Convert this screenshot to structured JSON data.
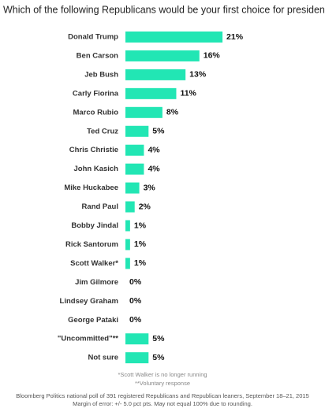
{
  "chart_data": {
    "type": "bar",
    "orientation": "horizontal",
    "title": "Which of the following Republicans would be your first choice for president?",
    "categories": [
      "Donald Trump",
      "Ben Carson",
      "Jeb Bush",
      "Carly Fiorina",
      "Marco Rubio",
      "Ted Cruz",
      "Chris Christie",
      "John Kasich",
      "Mike Huckabee",
      "Rand Paul",
      "Bobby Jindal",
      "Rick Santorum",
      "Scott Walker*",
      "Jim Gilmore",
      "Lindsey Graham",
      "George Pataki",
      "\"Uncommitted\"**",
      "Not sure"
    ],
    "values": [
      21,
      16,
      13,
      11,
      8,
      5,
      4,
      4,
      3,
      2,
      1,
      1,
      1,
      0,
      0,
      0,
      5,
      5
    ],
    "value_labels": [
      "21%",
      "16%",
      "13%",
      "11%",
      "8%",
      "5%",
      "4%",
      "4%",
      "3%",
      "2%",
      "1%",
      "1%",
      "1%",
      "0%",
      "0%",
      "0%",
      "5%",
      "5%"
    ],
    "color": "#22e6b4",
    "notes": [
      "*Scott Walker is no longer running",
      "**Voluntary response"
    ],
    "source": [
      "Bloomberg Politics national poll of 391 registered Republicans and Republican leaners, September 18–21, 2015",
      "Margin of error: +/- 5.0 pct pts. May not equal 100% due to rounding."
    ]
  }
}
